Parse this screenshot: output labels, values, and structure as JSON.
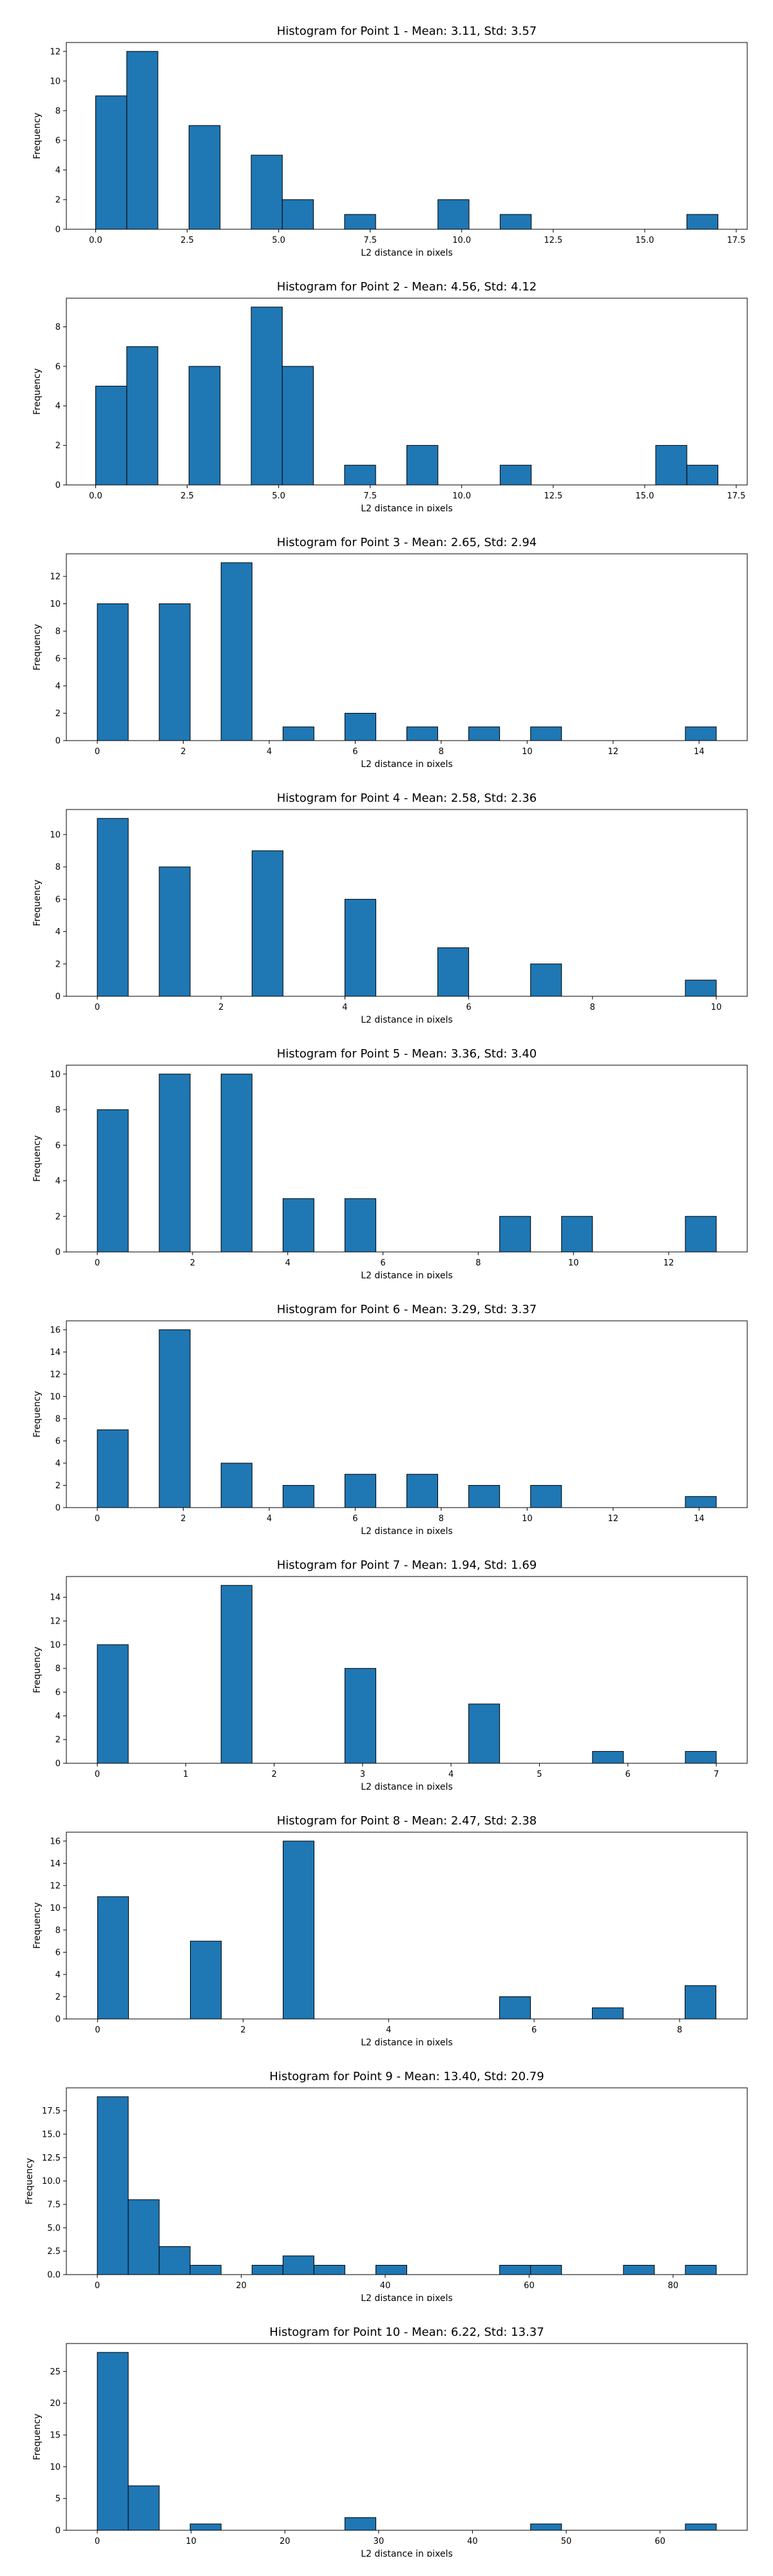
{
  "chart_data": [
    {
      "type": "bar",
      "title": "Histogram for Point 1 - Mean: 3.11, Std: 3.57",
      "xlabel": "L2 distance in pixels",
      "ylabel": "Frequency",
      "xlim": [
        -0.8,
        17.8
      ],
      "ylim": [
        0,
        12.6
      ],
      "xticks": [
        0,
        2.5,
        5,
        7.5,
        10,
        12.5,
        15,
        17.5
      ],
      "xtick_labels": [
        "0.0",
        "2.5",
        "5.0",
        "7.5",
        "10.0",
        "12.5",
        "15.0",
        "17.5"
      ],
      "yticks": [
        0,
        2,
        4,
        6,
        8,
        10,
        12
      ],
      "ytick_labels": [
        "0",
        "2",
        "4",
        "6",
        "8",
        "10",
        "12"
      ],
      "bins": [
        {
          "x0": 0.0,
          "x1": 0.85,
          "count": 9
        },
        {
          "x0": 0.85,
          "x1": 1.7,
          "count": 12
        },
        {
          "x0": 2.55,
          "x1": 3.4,
          "count": 7
        },
        {
          "x0": 4.25,
          "x1": 5.1,
          "count": 5
        },
        {
          "x0": 5.1,
          "x1": 5.95,
          "count": 2
        },
        {
          "x0": 6.8,
          "x1": 7.65,
          "count": 1
        },
        {
          "x0": 9.35,
          "x1": 10.2,
          "count": 2
        },
        {
          "x0": 11.05,
          "x1": 11.9,
          "count": 1
        },
        {
          "x0": 16.15,
          "x1": 17.0,
          "count": 1
        }
      ],
      "bar_color": "#1f77b4",
      "edge_color": "#000000"
    },
    {
      "type": "bar",
      "title": "Histogram for Point 2 - Mean: 4.56, Std: 4.12",
      "xlabel": "L2 distance in pixels",
      "ylabel": "Frequency",
      "xlim": [
        -0.8,
        17.8
      ],
      "ylim": [
        0,
        9.45
      ],
      "xticks": [
        0,
        2.5,
        5,
        7.5,
        10,
        12.5,
        15,
        17.5
      ],
      "xtick_labels": [
        "0.0",
        "2.5",
        "5.0",
        "7.5",
        "10.0",
        "12.5",
        "15.0",
        "17.5"
      ],
      "yticks": [
        0,
        2,
        4,
        6,
        8
      ],
      "ytick_labels": [
        "0",
        "2",
        "4",
        "6",
        "8"
      ],
      "bins": [
        {
          "x0": 0.0,
          "x1": 0.85,
          "count": 5
        },
        {
          "x0": 0.85,
          "x1": 1.7,
          "count": 7
        },
        {
          "x0": 2.55,
          "x1": 3.4,
          "count": 6
        },
        {
          "x0": 4.25,
          "x1": 5.1,
          "count": 9
        },
        {
          "x0": 5.1,
          "x1": 5.95,
          "count": 6
        },
        {
          "x0": 6.8,
          "x1": 7.65,
          "count": 1
        },
        {
          "x0": 8.5,
          "x1": 9.35,
          "count": 2
        },
        {
          "x0": 11.05,
          "x1": 11.9,
          "count": 1
        },
        {
          "x0": 15.3,
          "x1": 16.15,
          "count": 2
        },
        {
          "x0": 16.15,
          "x1": 17.0,
          "count": 1
        }
      ],
      "bar_color": "#1f77b4",
      "edge_color": "#000000"
    },
    {
      "type": "bar",
      "title": "Histogram for Point 3 - Mean: 2.65, Std: 2.94",
      "xlabel": "L2 distance in pixels",
      "ylabel": "Frequency",
      "xlim": [
        -0.72,
        15.12
      ],
      "ylim": [
        0,
        13.65
      ],
      "xticks": [
        0,
        2,
        4,
        6,
        8,
        10,
        12,
        14
      ],
      "xtick_labels": [
        "0",
        "2",
        "4",
        "6",
        "8",
        "10",
        "12",
        "14"
      ],
      "yticks": [
        0,
        2,
        4,
        6,
        8,
        10,
        12
      ],
      "ytick_labels": [
        "0",
        "2",
        "4",
        "6",
        "8",
        "10",
        "12"
      ],
      "bins": [
        {
          "x0": 0.0,
          "x1": 0.72,
          "count": 10
        },
        {
          "x0": 1.44,
          "x1": 2.16,
          "count": 10
        },
        {
          "x0": 2.88,
          "x1": 3.6,
          "count": 13
        },
        {
          "x0": 4.32,
          "x1": 5.04,
          "count": 1
        },
        {
          "x0": 5.76,
          "x1": 6.48,
          "count": 2
        },
        {
          "x0": 7.2,
          "x1": 7.92,
          "count": 1
        },
        {
          "x0": 8.64,
          "x1": 9.36,
          "count": 1
        },
        {
          "x0": 10.08,
          "x1": 10.8,
          "count": 1
        },
        {
          "x0": 13.68,
          "x1": 14.4,
          "count": 1
        }
      ],
      "bar_color": "#1f77b4",
      "edge_color": "#000000"
    },
    {
      "type": "bar",
      "title": "Histogram for Point 4 - Mean: 2.58, Std: 2.36",
      "xlabel": "L2 distance in pixels",
      "ylabel": "Frequency",
      "xlim": [
        -0.5,
        10.5
      ],
      "ylim": [
        0,
        11.55
      ],
      "xticks": [
        0,
        2,
        4,
        6,
        8,
        10
      ],
      "xtick_labels": [
        "0",
        "2",
        "4",
        "6",
        "8",
        "10"
      ],
      "yticks": [
        0,
        2,
        4,
        6,
        8,
        10
      ],
      "ytick_labels": [
        "0",
        "2",
        "4",
        "6",
        "8",
        "10"
      ],
      "bins": [
        {
          "x0": 0.0,
          "x1": 0.5,
          "count": 11
        },
        {
          "x0": 1.0,
          "x1": 1.5,
          "count": 8
        },
        {
          "x0": 2.5,
          "x1": 3.0,
          "count": 9
        },
        {
          "x0": 4.0,
          "x1": 4.5,
          "count": 6
        },
        {
          "x0": 5.5,
          "x1": 6.0,
          "count": 3
        },
        {
          "x0": 7.0,
          "x1": 7.5,
          "count": 2
        },
        {
          "x0": 9.5,
          "x1": 10.0,
          "count": 1
        }
      ],
      "bar_color": "#1f77b4",
      "edge_color": "#000000"
    },
    {
      "type": "bar",
      "title": "Histogram for Point 5 - Mean: 3.36, Std: 3.40",
      "xlabel": "L2 distance in pixels",
      "ylabel": "Frequency",
      "xlim": [
        -0.65,
        13.65
      ],
      "ylim": [
        0,
        10.5
      ],
      "xticks": [
        0,
        2,
        4,
        6,
        8,
        10,
        12
      ],
      "xtick_labels": [
        "0",
        "2",
        "4",
        "6",
        "8",
        "10",
        "12"
      ],
      "yticks": [
        0,
        2,
        4,
        6,
        8,
        10
      ],
      "ytick_labels": [
        "0",
        "2",
        "4",
        "6",
        "8",
        "10"
      ],
      "bins": [
        {
          "x0": 0.0,
          "x1": 0.65,
          "count": 8
        },
        {
          "x0": 1.3,
          "x1": 1.95,
          "count": 10
        },
        {
          "x0": 2.6,
          "x1": 3.25,
          "count": 10
        },
        {
          "x0": 3.9,
          "x1": 4.55,
          "count": 3
        },
        {
          "x0": 5.2,
          "x1": 5.85,
          "count": 3
        },
        {
          "x0": 8.45,
          "x1": 9.1,
          "count": 2
        },
        {
          "x0": 9.75,
          "x1": 10.4,
          "count": 2
        },
        {
          "x0": 12.35,
          "x1": 13.0,
          "count": 2
        }
      ],
      "bar_color": "#1f77b4",
      "edge_color": "#000000"
    },
    {
      "type": "bar",
      "title": "Histogram for Point 6 - Mean: 3.29, Std: 3.37",
      "xlabel": "L2 distance in pixels",
      "ylabel": "Frequency",
      "xlim": [
        -0.72,
        15.12
      ],
      "ylim": [
        0,
        16.8
      ],
      "xticks": [
        0,
        2,
        4,
        6,
        8,
        10,
        12,
        14
      ],
      "xtick_labels": [
        "0",
        "2",
        "4",
        "6",
        "8",
        "10",
        "12",
        "14"
      ],
      "yticks": [
        0,
        2,
        4,
        6,
        8,
        10,
        12,
        14,
        16
      ],
      "ytick_labels": [
        "0",
        "2",
        "4",
        "6",
        "8",
        "10",
        "12",
        "14",
        "16"
      ],
      "bins": [
        {
          "x0": 0.0,
          "x1": 0.72,
          "count": 7
        },
        {
          "x0": 1.44,
          "x1": 2.16,
          "count": 16
        },
        {
          "x0": 2.88,
          "x1": 3.6,
          "count": 4
        },
        {
          "x0": 4.32,
          "x1": 5.04,
          "count": 2
        },
        {
          "x0": 5.76,
          "x1": 6.48,
          "count": 3
        },
        {
          "x0": 7.2,
          "x1": 7.92,
          "count": 3
        },
        {
          "x0": 8.64,
          "x1": 9.36,
          "count": 2
        },
        {
          "x0": 10.08,
          "x1": 10.8,
          "count": 2
        },
        {
          "x0": 13.68,
          "x1": 14.4,
          "count": 1
        }
      ],
      "bar_color": "#1f77b4",
      "edge_color": "#000000"
    },
    {
      "type": "bar",
      "title": "Histogram for Point 7 - Mean: 1.94, Std: 1.69",
      "xlabel": "L2 distance in pixels",
      "ylabel": "Frequency",
      "xlim": [
        -0.35,
        7.35
      ],
      "ylim": [
        0,
        15.75
      ],
      "xticks": [
        0,
        1,
        2,
        3,
        4,
        5,
        6,
        7
      ],
      "xtick_labels": [
        "0",
        "1",
        "2",
        "3",
        "4",
        "5",
        "6",
        "7"
      ],
      "yticks": [
        0,
        2,
        4,
        6,
        8,
        10,
        12,
        14
      ],
      "ytick_labels": [
        "0",
        "2",
        "4",
        "6",
        "8",
        "10",
        "12",
        "14"
      ],
      "bins": [
        {
          "x0": 0.0,
          "x1": 0.35,
          "count": 10
        },
        {
          "x0": 1.4,
          "x1": 1.75,
          "count": 15
        },
        {
          "x0": 2.8,
          "x1": 3.15,
          "count": 8
        },
        {
          "x0": 4.2,
          "x1": 4.55,
          "count": 5
        },
        {
          "x0": 5.6,
          "x1": 5.95,
          "count": 1
        },
        {
          "x0": 6.65,
          "x1": 7.0,
          "count": 1
        }
      ],
      "bar_color": "#1f77b4",
      "edge_color": "#000000"
    },
    {
      "type": "bar",
      "title": "Histogram for Point 8 - Mean: 2.47, Std: 2.38",
      "xlabel": "L2 distance in pixels",
      "ylabel": "Frequency",
      "xlim": [
        -0.43,
        8.93
      ],
      "ylim": [
        0,
        16.8
      ],
      "xticks": [
        0,
        2,
        4,
        6,
        8
      ],
      "xtick_labels": [
        "0",
        "2",
        "4",
        "6",
        "8"
      ],
      "yticks": [
        0,
        2,
        4,
        6,
        8,
        10,
        12,
        14,
        16
      ],
      "ytick_labels": [
        "0",
        "2",
        "4",
        "6",
        "8",
        "10",
        "12",
        "14",
        "16"
      ],
      "bins": [
        {
          "x0": 0.0,
          "x1": 0.425,
          "count": 11
        },
        {
          "x0": 1.275,
          "x1": 1.7,
          "count": 7
        },
        {
          "x0": 2.55,
          "x1": 2.975,
          "count": 16
        },
        {
          "x0": 5.525,
          "x1": 5.95,
          "count": 2
        },
        {
          "x0": 6.8,
          "x1": 7.225,
          "count": 1
        },
        {
          "x0": 8.075,
          "x1": 8.5,
          "count": 3
        }
      ],
      "bar_color": "#1f77b4",
      "edge_color": "#000000"
    },
    {
      "type": "bar",
      "title": "Histogram for Point 9 - Mean: 13.40, Std: 20.79",
      "xlabel": "L2 distance in pixels",
      "ylabel": "Frequency",
      "xlim": [
        -4.3,
        90.3
      ],
      "ylim": [
        0,
        19.95
      ],
      "xticks": [
        0,
        20,
        40,
        60,
        80
      ],
      "xtick_labels": [
        "0",
        "20",
        "40",
        "60",
        "80"
      ],
      "yticks": [
        0,
        2.5,
        5,
        7.5,
        10,
        12.5,
        15,
        17.5
      ],
      "ytick_labels": [
        "0.0",
        "2.5",
        "5.0",
        "7.5",
        "10.0",
        "12.5",
        "15.0",
        "17.5"
      ],
      "bins": [
        {
          "x0": 0.0,
          "x1": 4.3,
          "count": 19
        },
        {
          "x0": 4.3,
          "x1": 8.6,
          "count": 8
        },
        {
          "x0": 8.6,
          "x1": 12.9,
          "count": 3
        },
        {
          "x0": 12.9,
          "x1": 17.2,
          "count": 1
        },
        {
          "x0": 21.5,
          "x1": 25.8,
          "count": 1
        },
        {
          "x0": 25.8,
          "x1": 30.1,
          "count": 2
        },
        {
          "x0": 30.1,
          "x1": 34.4,
          "count": 1
        },
        {
          "x0": 38.7,
          "x1": 43.0,
          "count": 1
        },
        {
          "x0": 55.9,
          "x1": 60.2,
          "count": 1
        },
        {
          "x0": 60.2,
          "x1": 64.5,
          "count": 1
        },
        {
          "x0": 73.1,
          "x1": 77.4,
          "count": 1
        },
        {
          "x0": 81.7,
          "x1": 86.0,
          "count": 1
        }
      ],
      "bar_color": "#1f77b4",
      "edge_color": "#000000"
    },
    {
      "type": "bar",
      "title": "Histogram for Point 10 - Mean: 6.22, Std: 13.37",
      "xlabel": "L2 distance in pixels",
      "ylabel": "Frequency",
      "xlim": [
        -3.3,
        69.3
      ],
      "ylim": [
        0,
        29.4
      ],
      "xticks": [
        0,
        10,
        20,
        30,
        40,
        50,
        60
      ],
      "xtick_labels": [
        "0",
        "10",
        "20",
        "30",
        "40",
        "50",
        "60"
      ],
      "yticks": [
        0,
        5,
        10,
        15,
        20,
        25
      ],
      "ytick_labels": [
        "0",
        "5",
        "10",
        "15",
        "20",
        "25"
      ],
      "bins": [
        {
          "x0": 0.0,
          "x1": 3.3,
          "count": 28
        },
        {
          "x0": 3.3,
          "x1": 6.6,
          "count": 7
        },
        {
          "x0": 9.9,
          "x1": 13.2,
          "count": 1
        },
        {
          "x0": 26.4,
          "x1": 29.7,
          "count": 2
        },
        {
          "x0": 46.2,
          "x1": 49.5,
          "count": 1
        },
        {
          "x0": 62.7,
          "x1": 66.0,
          "count": 1
        }
      ],
      "bar_color": "#1f77b4",
      "edge_color": "#000000"
    }
  ]
}
